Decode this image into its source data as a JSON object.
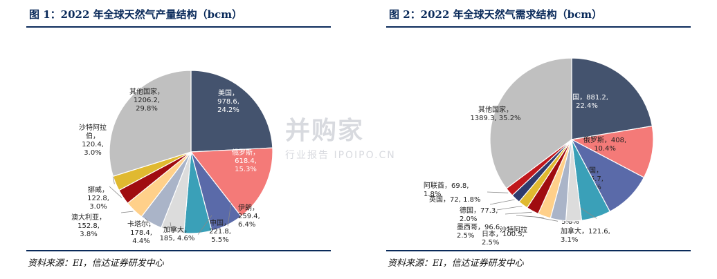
{
  "figure1": {
    "title": "图 1：2022 年全球天然气产量结构（bcm）",
    "source": "资料来源：EI，信达证券研发中心"
  },
  "figure2": {
    "title": "图 2：2022 年全球天然气需求结构（bcm）",
    "source": "资料来源：EI，信达证券研发中心"
  },
  "watermark": {
    "main": "并购家",
    "sub": "行业报告 IPOIPO.CN"
  },
  "chart_data": [
    {
      "type": "pie",
      "title": "2022 年全球天然气产量结构（bcm）",
      "slices": [
        {
          "label": "美国",
          "value": 978.6,
          "pct": "24.2%",
          "color": "#44536e",
          "text": "美国，\n978.6,\n24.2%"
        },
        {
          "label": "俄罗斯",
          "value": 618.4,
          "pct": "15.3%",
          "color": "#f47a78",
          "text": "俄罗斯，\n618.4,\n15.3%"
        },
        {
          "label": "伊朗",
          "value": 259.4,
          "pct": "6.4%",
          "color": "#5a6aa9",
          "text": "伊朗，\n259.4,\n6.4%"
        },
        {
          "label": "中国",
          "value": 221.8,
          "pct": "5.5%",
          "color": "#3aa0b8",
          "text": "中国，\n221.8,\n5.5%"
        },
        {
          "label": "加拿大",
          "value": 185,
          "pct": "4.6%",
          "color": "#dcdcdc",
          "text": "加拿大，\n185, 4.6%"
        },
        {
          "label": "卡塔尔",
          "value": 178.4,
          "pct": "4.4%",
          "color": "#aab4c8",
          "text": "卡塔尔，\n178.4,\n4.4%"
        },
        {
          "label": "澳大利亚",
          "value": 152.8,
          "pct": "3.8%",
          "color": "#ffd08a",
          "text": "澳大利亚，\n152.8,\n3.8%"
        },
        {
          "label": "挪威",
          "value": 122.8,
          "pct": "3.0%",
          "color": "#a00c10",
          "text": "挪威，\n122.8,\n3.0%"
        },
        {
          "label": "沙特阿拉伯",
          "value": 120.4,
          "pct": "3.0%",
          "color": "#e0b930",
          "text": "沙特阿拉\n伯，\n120.4,\n3.0%"
        },
        {
          "label": "其他国家",
          "value": 1206.2,
          "pct": "29.8%",
          "color": "#c0c0c0",
          "text": "其他国家，\n1206.2,\n29.8%"
        }
      ]
    },
    {
      "type": "pie",
      "title": "2022 年全球天然气需求结构（bcm）",
      "slices": [
        {
          "label": "美国",
          "value": 881.2,
          "pct": "22.4%",
          "color": "#44536e",
          "text": "美国，881.2,\n22.4%"
        },
        {
          "label": "俄罗斯",
          "value": 408,
          "pct": "10.4%",
          "color": "#f47a78",
          "text": "俄罗斯，408,\n10.4%"
        },
        {
          "label": "中国",
          "value": 375.7,
          "pct": "9.5%",
          "color": "#5a6aa9",
          "text": "中国，\n375.7,\n9.5%"
        },
        {
          "label": "伊朗",
          "value": 228.9,
          "pct": "5.8%",
          "color": "#3aa0b8",
          "text": "伊朗，\n228.9,\n5.8%"
        },
        {
          "label": "加拿大",
          "value": 121.6,
          "pct": "3.1%",
          "color": "#dcdcdc",
          "text": "加拿大，121.6,\n3.1%"
        },
        {
          "label": "沙特阿拉伯",
          "value": 120,
          "pct": "",
          "color": "#aab4c8",
          "text": "沙特阿拉"
        },
        {
          "label": "日本",
          "value": 100.5,
          "pct": "2.5%",
          "color": "#ffd08a",
          "text": "日本，100.5,\n2.5%"
        },
        {
          "label": "墨西哥",
          "value": 96.6,
          "pct": "2.5%",
          "color": "#a00c10",
          "text": "墨西哥，96.6,\n2.5%"
        },
        {
          "label": "德国",
          "value": 77.3,
          "pct": "2.0%",
          "color": "#e0b930",
          "text": "德国，77.3,\n2.0%"
        },
        {
          "label": "英国",
          "value": 72,
          "pct": "1.8%",
          "color": "#2f3b6d",
          "text": "英国，72, 1.8%"
        },
        {
          "label": "阿联酋",
          "value": 69.8,
          "pct": "1.8%",
          "color": "#c0181c",
          "text": "阿联酋，69.8,\n1.8%"
        },
        {
          "label": "其他国家",
          "value": 1389.3,
          "pct": "35.2%",
          "color": "#c0c0c0",
          "text": "其他国家，\n1389.3, 35.2%"
        }
      ]
    }
  ]
}
